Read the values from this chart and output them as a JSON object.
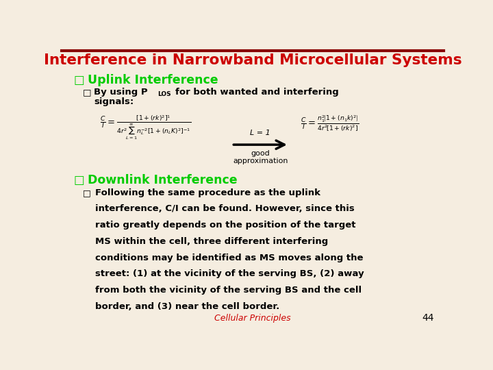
{
  "title": "Interference in Narrowband Microcellular Systems",
  "title_color": "#cc0000",
  "background_color": "#f5ede0",
  "uplink_header": "Uplink Interference",
  "uplink_bullet_color": "#00cc00",
  "downlink_header": "Downlink Interference",
  "downlink_bullet_color": "#00cc00",
  "footer_text": "Cellular Principles",
  "footer_color": "#cc0000",
  "page_number": "44",
  "arrow_label1": "L = 1",
  "arrow_label2": "good\napproximation",
  "border_color": "#880000",
  "text_color": "#000000"
}
